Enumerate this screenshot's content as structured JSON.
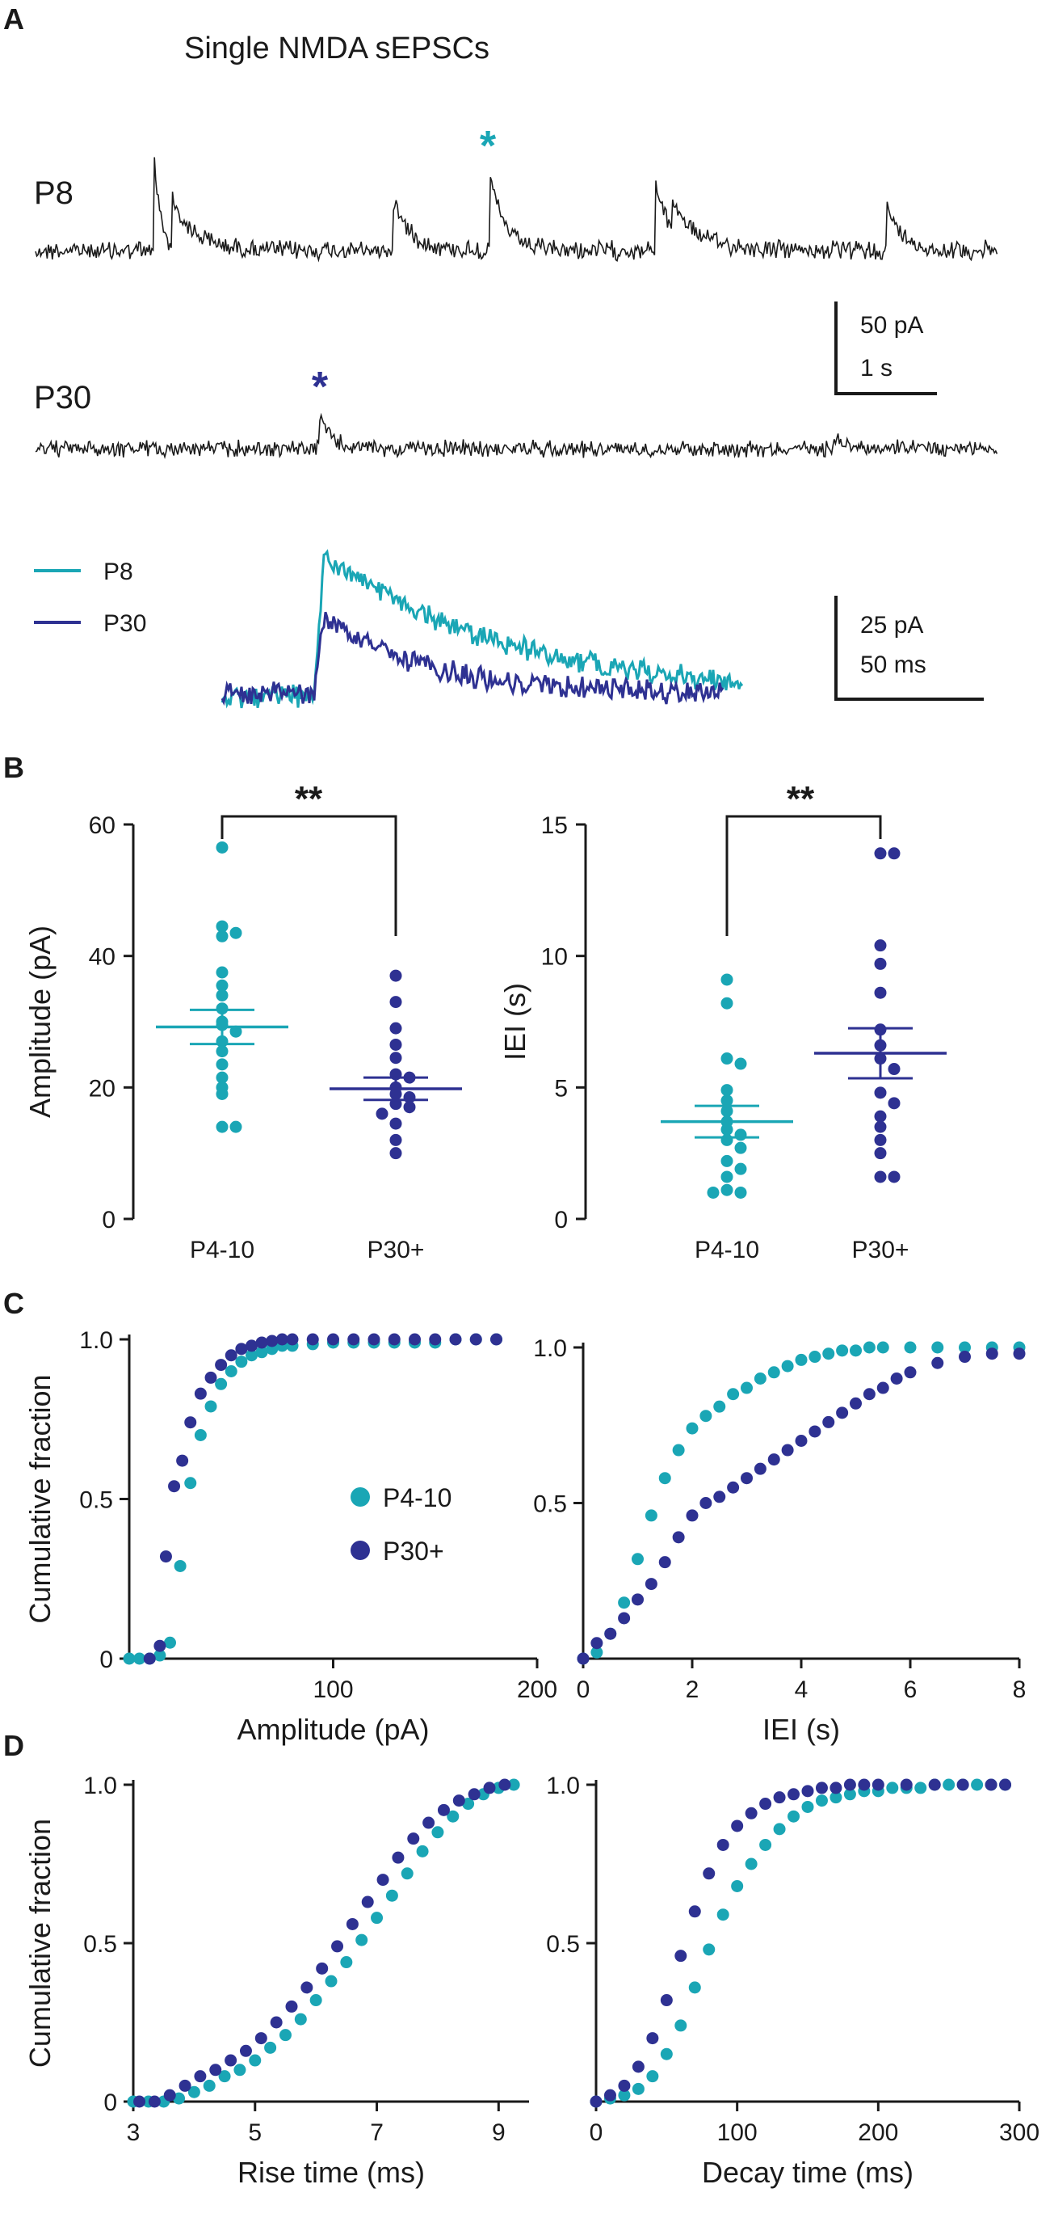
{
  "colors": {
    "teal": "#1aa6b5",
    "navy": "#2e3192",
    "ink": "#1a1a1a",
    "trace": "#1b1b1b"
  },
  "panel_a": {
    "label": "A",
    "title": "Single NMDA sEPSCs",
    "trace1_label": "P8",
    "trace2_label": "P30",
    "star": "*",
    "scale1": [
      "50 pA",
      "1 s"
    ],
    "scale2": [
      "25 pA",
      "50 ms"
    ],
    "legend": [
      "P8",
      "P30"
    ]
  },
  "panel_b": {
    "label": "B",
    "sig": "**"
  },
  "panel_c": {
    "label": "C",
    "legend": [
      "P4-10",
      "P30+"
    ]
  },
  "panel_d": {
    "label": "D"
  },
  "chart_data": [
    {
      "id": "amp",
      "type": "scatter",
      "ylabel": "Amplitude (pA)",
      "categories": [
        "P4-10",
        "P30+"
      ],
      "ylim": [
        0,
        60
      ],
      "yticks": [
        0,
        20,
        40,
        60
      ],
      "series": [
        {
          "name": "P4-10",
          "color": "teal",
          "mean": 29.2,
          "sem": 2.6,
          "values": [
            56.5,
            44.5,
            43.5,
            43,
            37.5,
            35.5,
            34,
            32,
            30,
            29.5,
            28.5,
            27,
            25.5,
            23.5,
            21.5,
            20,
            19,
            14,
            14
          ]
        },
        {
          "name": "P30+",
          "color": "navy",
          "mean": 19.8,
          "sem": 1.7,
          "values": [
            37,
            33,
            29,
            26.5,
            24.5,
            22,
            21.5,
            20,
            19,
            18.5,
            17.5,
            17,
            16,
            14.5,
            12,
            10
          ]
        }
      ]
    },
    {
      "id": "iei",
      "type": "scatter",
      "ylabel": "IEI (s)",
      "categories": [
        "P4-10",
        "P30+"
      ],
      "ylim": [
        0,
        15
      ],
      "yticks": [
        0,
        5,
        10,
        15
      ],
      "series": [
        {
          "name": "P4-10",
          "color": "teal",
          "mean": 3.7,
          "sem": 0.6,
          "values": [
            9.1,
            8.2,
            6.1,
            5.9,
            4.9,
            4.5,
            4.1,
            3.7,
            3.4,
            3.2,
            3,
            2.7,
            2.2,
            1.9,
            1.6,
            1.1,
            1,
            1
          ]
        },
        {
          "name": "P30+",
          "color": "navy",
          "mean": 6.3,
          "sem": 0.95,
          "values": [
            13.9,
            13.9,
            10.4,
            9.7,
            8.6,
            7.2,
            6.6,
            6.1,
            5.7,
            4.8,
            4.4,
            3.9,
            3.5,
            3,
            2.5,
            1.6,
            1.6
          ]
        }
      ]
    },
    {
      "id": "cum_amp",
      "type": "scatter",
      "xlabel": "Amplitude (pA)",
      "ylabel": "Cumulative fraction",
      "xlim": [
        0,
        200
      ],
      "xticks": [
        100,
        200
      ],
      "ylim": [
        0,
        1
      ],
      "yticks": [
        0,
        0.5,
        1
      ],
      "series": [
        {
          "name": "P4-10",
          "color": "teal",
          "x": [
            0,
            5,
            10,
            15,
            20,
            25,
            30,
            35,
            40,
            45,
            50,
            55,
            60,
            65,
            70,
            75,
            80,
            90,
            100,
            110,
            120,
            130,
            140,
            150,
            160,
            170,
            180
          ],
          "y": [
            0.0,
            0.0,
            0.0,
            0.01,
            0.05,
            0.29,
            0.55,
            0.7,
            0.79,
            0.86,
            0.9,
            0.93,
            0.95,
            0.96,
            0.97,
            0.98,
            0.98,
            0.985,
            0.99,
            0.99,
            0.99,
            0.99,
            0.99,
            0.99,
            1.0,
            1.0,
            1.0
          ]
        },
        {
          "name": "P30+",
          "color": "navy",
          "x": [
            10,
            15,
            18,
            22,
            26,
            30,
            35,
            40,
            45,
            50,
            55,
            60,
            65,
            70,
            75,
            80,
            90,
            100,
            110,
            120,
            130,
            140,
            150,
            160,
            170,
            180
          ],
          "y": [
            0.0,
            0.04,
            0.32,
            0.54,
            0.62,
            0.74,
            0.83,
            0.88,
            0.92,
            0.95,
            0.97,
            0.98,
            0.99,
            0.995,
            1.0,
            1.0,
            1.0,
            1.0,
            1.0,
            1.0,
            1.0,
            1.0,
            1.0,
            1.0,
            1.0,
            1.0
          ]
        }
      ]
    },
    {
      "id": "cum_iei",
      "type": "scatter",
      "xlabel": "IEI (s)",
      "xlim": [
        0,
        8
      ],
      "xticks": [
        0,
        2,
        4,
        6,
        8
      ],
      "ylim": [
        0,
        1
      ],
      "yticks": [
        0.5,
        1
      ],
      "series": [
        {
          "name": "P4-10",
          "color": "teal",
          "x": [
            0,
            0.25,
            0.5,
            0.75,
            1.0,
            1.25,
            1.5,
            1.75,
            2.0,
            2.25,
            2.5,
            2.75,
            3.0,
            3.25,
            3.5,
            3.75,
            4.0,
            4.25,
            4.5,
            4.75,
            5.0,
            5.25,
            5.5,
            6.0,
            6.5,
            7.0,
            7.5,
            8.0
          ],
          "y": [
            0.0,
            0.02,
            0.08,
            0.18,
            0.32,
            0.46,
            0.58,
            0.67,
            0.74,
            0.78,
            0.81,
            0.85,
            0.87,
            0.9,
            0.92,
            0.94,
            0.96,
            0.97,
            0.98,
            0.99,
            0.99,
            1.0,
            1.0,
            1.0,
            1.0,
            1.0,
            1.0,
            1.0
          ]
        },
        {
          "name": "P30+",
          "color": "navy",
          "x": [
            0,
            0.25,
            0.5,
            0.75,
            1.0,
            1.25,
            1.5,
            1.75,
            2.0,
            2.25,
            2.5,
            2.75,
            3.0,
            3.25,
            3.5,
            3.75,
            4.0,
            4.25,
            4.5,
            4.75,
            5.0,
            5.25,
            5.5,
            5.75,
            6.0,
            6.5,
            7.0,
            7.5,
            8.0
          ],
          "y": [
            0.0,
            0.05,
            0.08,
            0.13,
            0.19,
            0.24,
            0.31,
            0.39,
            0.46,
            0.5,
            0.52,
            0.55,
            0.58,
            0.61,
            0.64,
            0.67,
            0.7,
            0.73,
            0.76,
            0.79,
            0.82,
            0.85,
            0.87,
            0.9,
            0.92,
            0.95,
            0.97,
            0.98,
            0.98
          ]
        }
      ]
    },
    {
      "id": "cum_rise",
      "type": "scatter",
      "xlabel": "Rise time (ms)",
      "ylabel": "Cumulative fraction",
      "xlim": [
        3,
        9.5
      ],
      "xticks": [
        3,
        5,
        7,
        9
      ],
      "ylim": [
        0,
        1
      ],
      "yticks": [
        0,
        0.5,
        1
      ],
      "series": [
        {
          "name": "P4-10",
          "color": "teal",
          "x": [
            3,
            3.25,
            3.5,
            3.75,
            4.0,
            4.25,
            4.5,
            4.75,
            5.0,
            5.25,
            5.5,
            5.75,
            6.0,
            6.25,
            6.5,
            6.75,
            7.0,
            7.25,
            7.5,
            7.75,
            8.0,
            8.25,
            8.5,
            8.75,
            9.0,
            9.25
          ],
          "y": [
            0.0,
            0.0,
            0.0,
            0.01,
            0.03,
            0.05,
            0.08,
            0.1,
            0.13,
            0.17,
            0.21,
            0.26,
            0.32,
            0.38,
            0.44,
            0.51,
            0.58,
            0.65,
            0.72,
            0.79,
            0.85,
            0.9,
            0.94,
            0.97,
            0.99,
            1.0
          ]
        },
        {
          "name": "P30+",
          "color": "navy",
          "x": [
            3.1,
            3.35,
            3.6,
            3.85,
            4.1,
            4.35,
            4.6,
            4.85,
            5.1,
            5.35,
            5.6,
            5.85,
            6.1,
            6.35,
            6.6,
            6.85,
            7.1,
            7.35,
            7.6,
            7.85,
            8.1,
            8.35,
            8.6,
            8.85,
            9.1
          ],
          "y": [
            0.0,
            0.0,
            0.02,
            0.05,
            0.08,
            0.1,
            0.13,
            0.16,
            0.2,
            0.25,
            0.3,
            0.36,
            0.42,
            0.49,
            0.56,
            0.63,
            0.7,
            0.77,
            0.83,
            0.88,
            0.92,
            0.95,
            0.97,
            0.99,
            1.0
          ]
        }
      ]
    },
    {
      "id": "cum_decay",
      "type": "scatter",
      "xlabel": "Decay time (ms)",
      "xlim": [
        0,
        300
      ],
      "xticks": [
        0,
        100,
        200,
        300
      ],
      "ylim": [
        0,
        1
      ],
      "yticks": [
        0.5,
        1
      ],
      "series": [
        {
          "name": "P4-10",
          "color": "teal",
          "x": [
            0,
            10,
            20,
            30,
            40,
            50,
            60,
            70,
            80,
            90,
            100,
            110,
            120,
            130,
            140,
            150,
            160,
            170,
            180,
            190,
            200,
            210,
            220,
            230,
            240,
            250,
            260,
            270,
            280,
            290
          ],
          "y": [
            0.0,
            0.01,
            0.02,
            0.04,
            0.08,
            0.15,
            0.24,
            0.36,
            0.48,
            0.59,
            0.68,
            0.75,
            0.81,
            0.86,
            0.9,
            0.93,
            0.95,
            0.96,
            0.97,
            0.98,
            0.98,
            0.99,
            0.99,
            0.99,
            1.0,
            1.0,
            1.0,
            1.0,
            1.0,
            1.0
          ]
        },
        {
          "name": "P30+",
          "color": "navy",
          "x": [
            0,
            10,
            20,
            30,
            40,
            50,
            60,
            70,
            80,
            90,
            100,
            110,
            120,
            130,
            140,
            150,
            160,
            170,
            180,
            190,
            200,
            220,
            240,
            260,
            280,
            290
          ],
          "y": [
            0.0,
            0.02,
            0.05,
            0.11,
            0.2,
            0.32,
            0.46,
            0.6,
            0.72,
            0.81,
            0.87,
            0.91,
            0.94,
            0.96,
            0.97,
            0.98,
            0.99,
            0.99,
            1.0,
            1.0,
            1.0,
            1.0,
            1.0,
            1.0,
            1.0,
            1.0
          ]
        }
      ]
    }
  ]
}
